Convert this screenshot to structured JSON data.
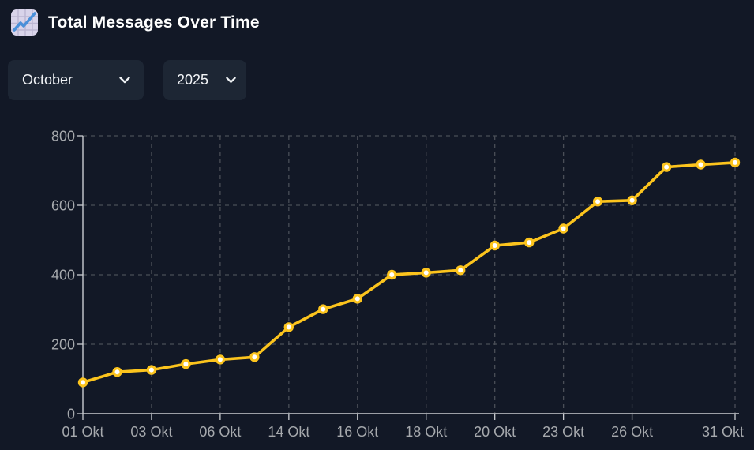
{
  "header": {
    "title": "Total Messages Over Time"
  },
  "icons": {
    "title_icon": "chart-increasing",
    "select_chevron": "chevron-down"
  },
  "filters": {
    "month_value": "October",
    "year_value": "2025"
  },
  "chart_data": {
    "type": "line",
    "title": "Total Messages Over Time",
    "x_axis": {
      "tick_labels": [
        "01 Okt",
        "03 Okt",
        "06 Okt",
        "14 Okt",
        "16 Okt",
        "18 Okt",
        "20 Okt",
        "23 Okt",
        "26 Okt",
        "31 Okt"
      ],
      "tick_point_indices": [
        0,
        2,
        4,
        6,
        8,
        10,
        12,
        14,
        16,
        19
      ]
    },
    "y_axis": {
      "ticks": [
        0,
        200,
        400,
        600,
        800
      ],
      "range": [
        0,
        800
      ]
    },
    "series": [
      {
        "name": "Total Messages",
        "point_count": 20,
        "values": [
          90,
          120,
          126,
          143,
          156,
          163,
          249,
          301,
          331,
          400,
          406,
          413,
          484,
          493,
          533,
          611,
          614,
          710,
          717,
          723
        ]
      }
    ],
    "grid": "dashed",
    "legend": "none",
    "colors": {
      "background": "#121826",
      "panel": "#1d2634",
      "line": "#fcc41d",
      "point_fill": "#ffffff",
      "grid": "#4a4e57",
      "axis": "#c9ccd1",
      "tick_text": "#a6a9ad",
      "title_text": "#ffffff"
    }
  }
}
